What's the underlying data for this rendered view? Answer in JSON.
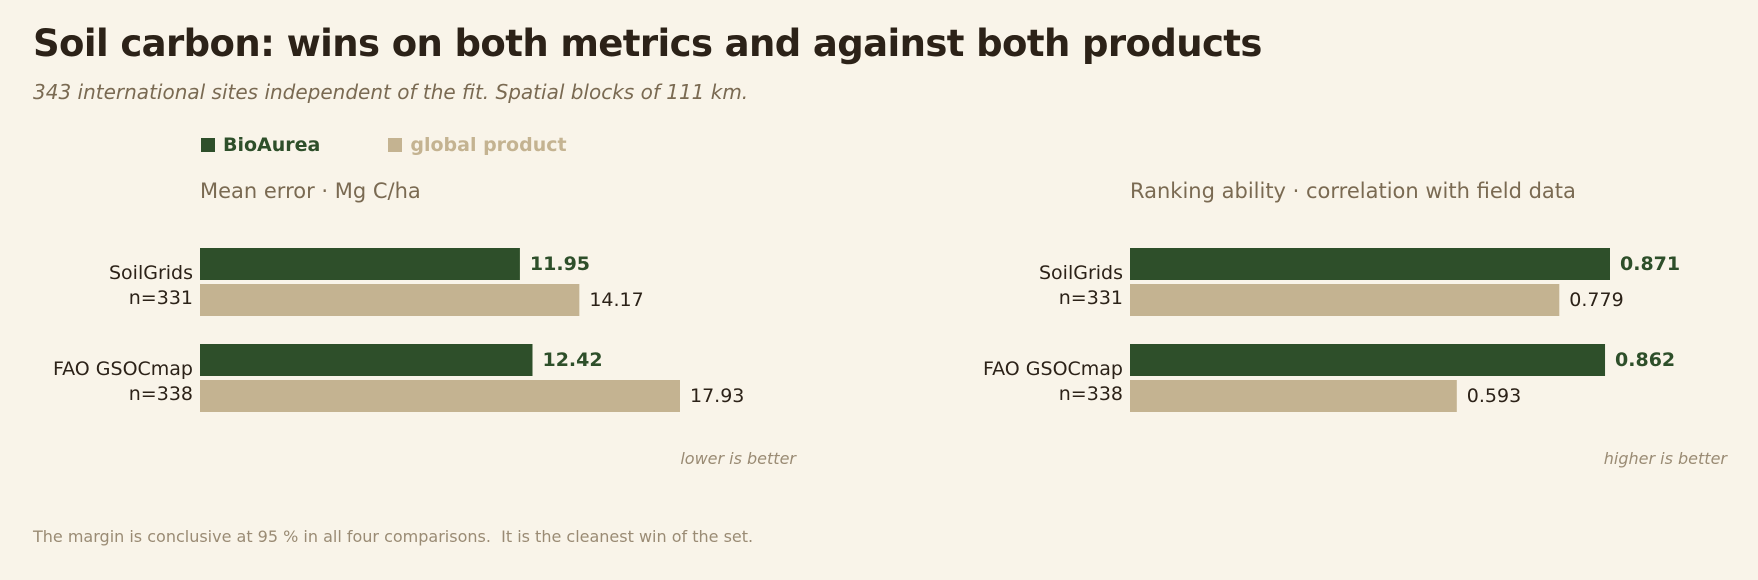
{
  "title": "Soil carbon: wins on both metrics and against both products",
  "subtitle": "343 international sites independent of the fit. Spatial blocks of 111 km.",
  "legend": [
    {
      "label": "BioAurea",
      "color": "#2e4f2a"
    },
    {
      "label": "global product",
      "color": "#c4b391"
    }
  ],
  "footer": "The margin is conclusive at 95 % in all four comparisons.  It is the cleanest win of the set.",
  "colors": {
    "primary": "#2e4f2a",
    "secondary": "#c4b391",
    "text_dark": "#2c2218",
    "text_muted": "#7a6a52",
    "note": "#9a8b74"
  },
  "chart_data": [
    {
      "type": "bar",
      "orientation": "horizontal",
      "title": "Mean error  ·  Mg C/ha",
      "note": "lower is better",
      "categories": [
        "SoilGrids",
        "FAO GSOCmap"
      ],
      "category_sublabels": [
        "n=331",
        "n=338"
      ],
      "series": [
        {
          "name": "BioAurea",
          "values": [
            11.95,
            12.42
          ],
          "labels": [
            "11.95",
            "12.42"
          ]
        },
        {
          "name": "global product",
          "values": [
            14.17,
            17.93
          ],
          "labels": [
            "14.17",
            "17.93"
          ]
        }
      ],
      "xlim": [
        0,
        17.93
      ],
      "grid": false
    },
    {
      "type": "bar",
      "orientation": "horizontal",
      "title": "Ranking ability  ·  correlation with field data",
      "note": "higher is better",
      "categories": [
        "SoilGrids",
        "FAO GSOCmap"
      ],
      "category_sublabels": [
        "n=331",
        "n=338"
      ],
      "series": [
        {
          "name": "BioAurea",
          "values": [
            0.871,
            0.862
          ],
          "labels": [
            "0.871",
            "0.862"
          ]
        },
        {
          "name": "global product",
          "values": [
            0.779,
            0.593
          ],
          "labels": [
            "0.779",
            "0.593"
          ]
        }
      ],
      "xlim": [
        0,
        0.871
      ],
      "grid": false
    }
  ]
}
